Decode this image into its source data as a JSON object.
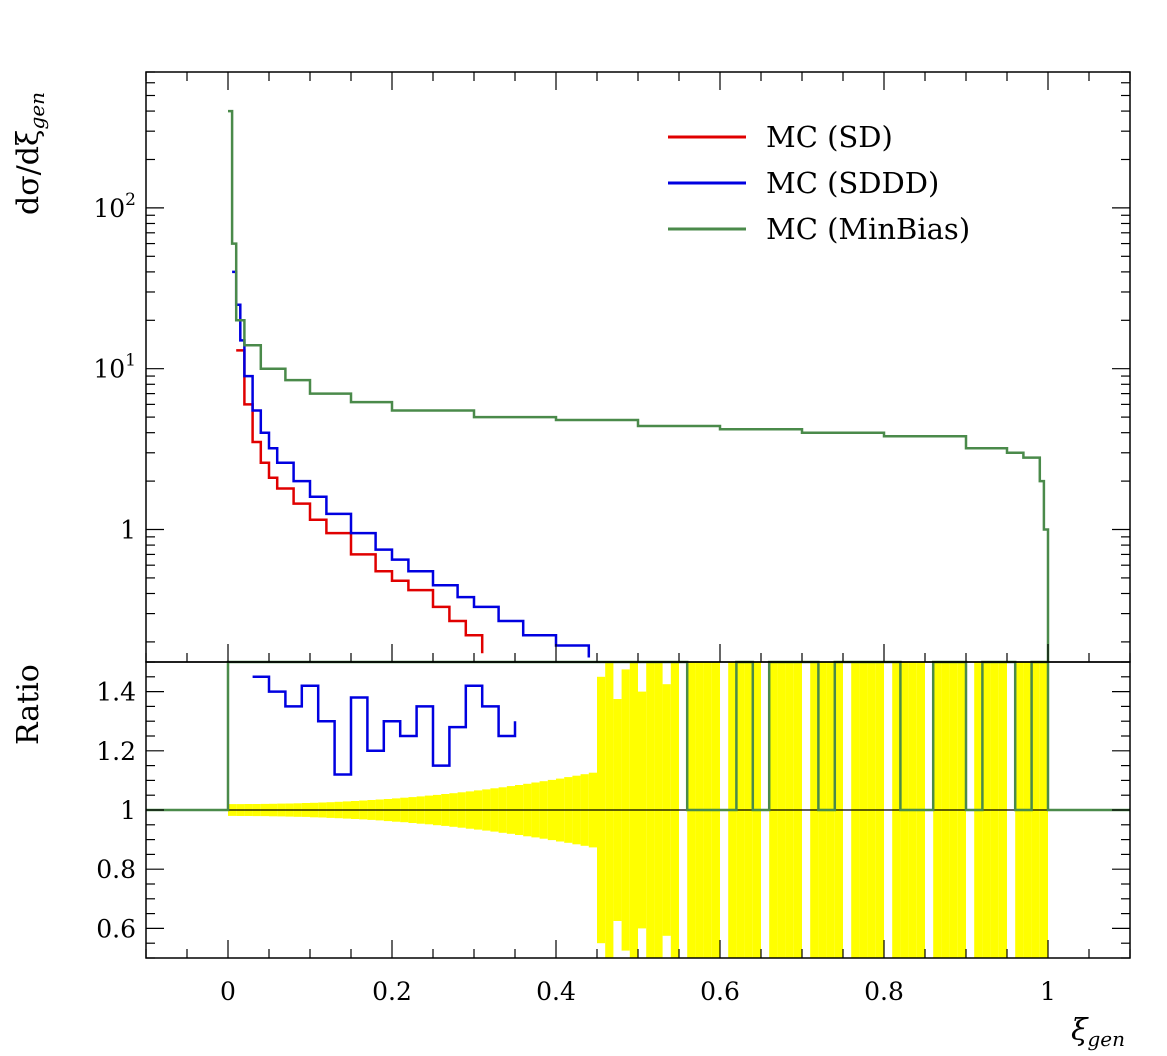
{
  "chart_data": [
    {
      "type": "line",
      "step": true,
      "panel": "main",
      "ylabel": "dσ/dξ",
      "ylabel_sub": "gen",
      "yscale": "log",
      "xlim": [
        -0.1,
        1.1
      ],
      "ylim": [
        0.15,
        700
      ],
      "yticks": [
        {
          "value": 1,
          "label": "1"
        },
        {
          "value": 10,
          "label": "10",
          "exp": "1"
        },
        {
          "value": 100,
          "label": "10",
          "exp": "2"
        }
      ],
      "legend_position": "top-right",
      "series": [
        {
          "name": "MC (SD)",
          "color": "#e00000",
          "x": [
            0.01,
            0.02,
            0.03,
            0.04,
            0.05,
            0.06,
            0.08,
            0.1,
            0.12,
            0.15,
            0.18,
            0.2,
            0.22,
            0.25,
            0.27,
            0.29,
            0.31
          ],
          "y": [
            13,
            6,
            3.5,
            2.6,
            2.1,
            1.8,
            1.45,
            1.15,
            0.95,
            0.7,
            0.55,
            0.48,
            0.42,
            0.33,
            0.27,
            0.22,
            0.17
          ]
        },
        {
          "name": "MC (SDDD)",
          "color": "#0000e0",
          "x": [
            0.005,
            0.01,
            0.015,
            0.02,
            0.03,
            0.04,
            0.05,
            0.06,
            0.08,
            0.1,
            0.12,
            0.15,
            0.18,
            0.2,
            0.22,
            0.25,
            0.28,
            0.3,
            0.33,
            0.36,
            0.4,
            0.44
          ],
          "y": [
            40,
            25,
            15,
            9,
            5.5,
            4,
            3.2,
            2.6,
            2,
            1.6,
            1.25,
            0.95,
            0.75,
            0.65,
            0.55,
            0.45,
            0.38,
            0.33,
            0.27,
            0.22,
            0.19,
            0.16
          ]
        },
        {
          "name": "MC (MinBias)",
          "color": "#4a8a4a",
          "x": [
            0.0,
            0.005,
            0.01,
            0.02,
            0.04,
            0.07,
            0.1,
            0.15,
            0.2,
            0.3,
            0.4,
            0.5,
            0.6,
            0.7,
            0.8,
            0.9,
            0.95,
            0.97,
            0.99,
            0.995,
            1.0
          ],
          "y": [
            400,
            60,
            20,
            14,
            10,
            8.5,
            7,
            6.2,
            5.5,
            5,
            4.8,
            4.4,
            4.2,
            4.0,
            3.8,
            3.2,
            3.0,
            2.8,
            2.0,
            1.0,
            0.15
          ]
        }
      ]
    },
    {
      "type": "line",
      "step": true,
      "panel": "ratio",
      "xlabel": "ξ",
      "xlabel_sub": "gen",
      "ylabel": "Ratio",
      "xlim": [
        -0.1,
        1.1
      ],
      "ylim": [
        0.5,
        1.5
      ],
      "xticks": [
        {
          "value": 0,
          "label": "0"
        },
        {
          "value": 0.2,
          "label": "0.2"
        },
        {
          "value": 0.4,
          "label": "0.4"
        },
        {
          "value": 0.6,
          "label": "0.6"
        },
        {
          "value": 0.8,
          "label": "0.8"
        },
        {
          "value": 1,
          "label": "1"
        }
      ],
      "yticks": [
        {
          "value": 0.6,
          "label": "0.6"
        },
        {
          "value": 0.8,
          "label": "0.8"
        },
        {
          "value": 1,
          "label": "1"
        },
        {
          "value": 1.2,
          "label": "1.2"
        },
        {
          "value": 1.4,
          "label": "1.4"
        }
      ],
      "reference": 1,
      "band_color": "#ffff00",
      "series": [
        {
          "name": "MC (SDDD)",
          "color": "#0000e0",
          "x": [
            0.03,
            0.05,
            0.07,
            0.09,
            0.11,
            0.13,
            0.15,
            0.17,
            0.19,
            0.21,
            0.23,
            0.25,
            0.27,
            0.29,
            0.31,
            0.33,
            0.35
          ],
          "y": [
            1.45,
            1.4,
            1.35,
            1.42,
            1.3,
            1.12,
            1.38,
            1.2,
            1.3,
            1.25,
            1.35,
            1.15,
            1.28,
            1.42,
            1.35,
            1.25,
            1.3
          ]
        },
        {
          "name": "MC (MinBias)",
          "color": "#4a8a4a",
          "x": [
            -0.1,
            0.0,
            0.55,
            0.56,
            0.62,
            0.64,
            0.66,
            0.7,
            0.72,
            0.74,
            0.8,
            0.82,
            0.86,
            0.9,
            0.92,
            0.96,
            0.98,
            1.0,
            1.1
          ],
          "y": [
            1,
            1.5,
            1.5,
            1,
            1.5,
            1,
            1.5,
            1.5,
            1,
            1.5,
            1.5,
            1,
            1.5,
            1,
            1.5,
            1,
            1.5,
            1,
            1
          ]
        }
      ]
    }
  ]
}
